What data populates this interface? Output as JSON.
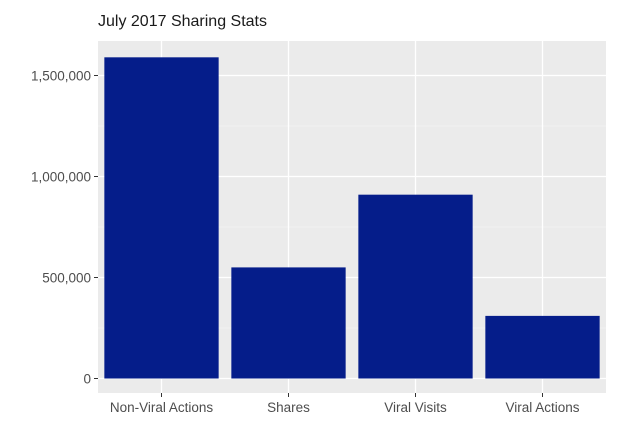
{
  "chart_data": {
    "type": "bar",
    "title": "July 2017 Sharing Stats",
    "xlabel": "",
    "ylabel": "",
    "categories": [
      "Non-Viral Actions",
      "Shares",
      "Viral Visits",
      "Viral Actions"
    ],
    "values": [
      1590000,
      550000,
      910000,
      310000
    ],
    "ylim": [
      0,
      1500000
    ],
    "yticks": [
      0,
      500000,
      1000000,
      1500000
    ],
    "ytick_labels": [
      "0",
      "500,000",
      "1,000,000",
      "1,500,000"
    ],
    "grid": true,
    "legend": "none",
    "colors": {
      "bar": "#051D8A",
      "panel": "#EBEBEB",
      "grid_major": "#FFFFFF",
      "grid_minor": "#F5F5F5"
    }
  }
}
